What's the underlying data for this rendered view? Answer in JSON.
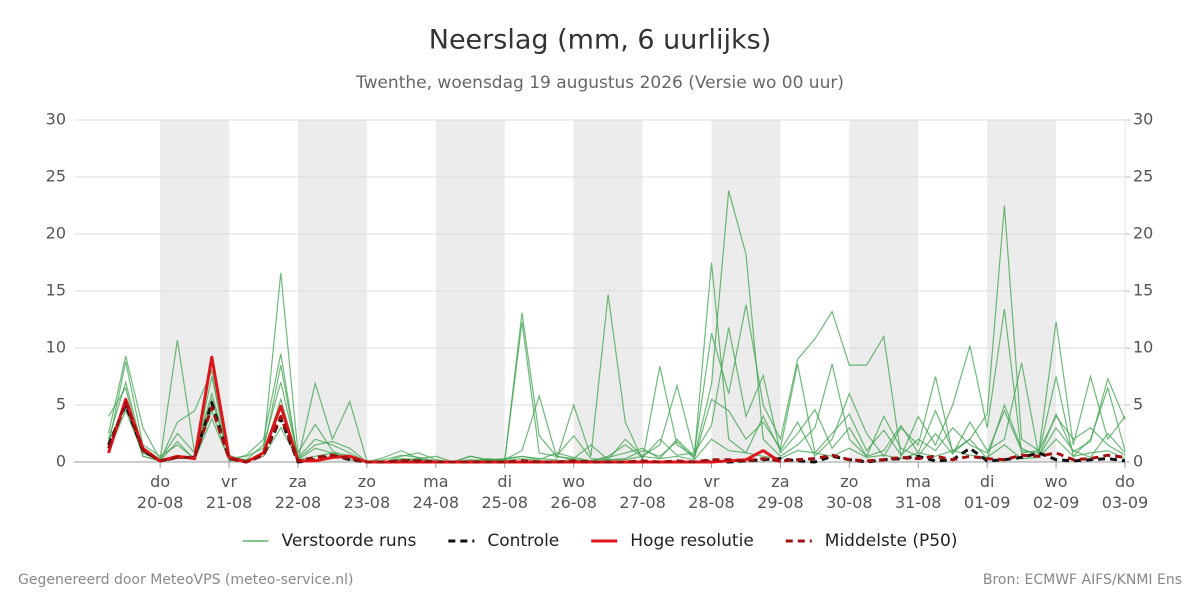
{
  "chart_data": {
    "type": "line",
    "title": "Neerslag (mm, 6 uurlijks)",
    "subtitle": "Twenthe, woensdag 19 augustus 2026 (Versie wo 00 uur)",
    "x": [
      6,
      12,
      18,
      24,
      30,
      36,
      42,
      48,
      54,
      60,
      66,
      72,
      78,
      84,
      90,
      96,
      102,
      108,
      114,
      120,
      126,
      132,
      138,
      144,
      150,
      156,
      162,
      168,
      174,
      180,
      186,
      192,
      198,
      204,
      210,
      216,
      222,
      228,
      234,
      240,
      246,
      252,
      258,
      264,
      270,
      276,
      282,
      288,
      294,
      300,
      306,
      312,
      318,
      324,
      330,
      336,
      342,
      348,
      354,
      360
    ],
    "xlim": [
      -6,
      360
    ],
    "xticks": [
      {
        "value": 24,
        "label": "do\n20-08"
      },
      {
        "value": 48,
        "label": "vr\n21-08"
      },
      {
        "value": 72,
        "label": "za\n22-08"
      },
      {
        "value": 96,
        "label": "zo\n23-08"
      },
      {
        "value": 120,
        "label": "ma\n24-08"
      },
      {
        "value": 144,
        "label": "di\n25-08"
      },
      {
        "value": 168,
        "label": "wo\n26-08"
      },
      {
        "value": 192,
        "label": "do\n27-08"
      },
      {
        "value": 216,
        "label": "vr\n28-08"
      },
      {
        "value": 240,
        "label": "za\n29-08"
      },
      {
        "value": 264,
        "label": "zo\n30-08"
      },
      {
        "value": 288,
        "label": "ma\n31-08"
      },
      {
        "value": 312,
        "label": "di\n01-09"
      },
      {
        "value": 336,
        "label": "wo\n02-09"
      },
      {
        "value": 360,
        "label": "do\n03-09"
      }
    ],
    "ylim": [
      0,
      30
    ],
    "yticks": [
      0,
      5,
      10,
      15,
      20,
      25,
      30
    ],
    "y2lim": [
      0,
      30
    ],
    "y2ticks": [
      0,
      5,
      10,
      15,
      20,
      25,
      30
    ],
    "grid": true,
    "ensemble": {
      "name": "Verstoorde runs",
      "color": "#3fa34d",
      "members": [
        [
          2.5,
          9.3,
          3.0,
          0.2,
          10.7,
          0.8,
          6.0,
          0.6,
          0.1,
          0.9,
          8.5,
          0.3,
          1.5,
          1.8,
          1.2,
          0,
          0,
          0.5,
          0.8,
          0.2,
          0,
          0,
          0.3,
          0.1,
          13.1,
          2.3,
          0.5,
          0.2,
          0.1,
          0.4,
          0.8,
          1.2,
          0.3,
          2.0,
          0.5,
          6.8,
          23.8,
          18.2,
          2.0,
          0.5,
          1.5,
          3.0,
          8.6,
          2.0,
          0.5,
          1.0,
          3.2,
          0.8,
          4.5,
          1.0,
          2.0,
          0.3,
          5.0,
          1.2,
          0.5,
          3.0,
          1.0,
          0.4,
          2.5,
          0.8
        ],
        [
          4.0,
          6.5,
          0.5,
          0.1,
          3.5,
          4.5,
          8.0,
          0.3,
          0.5,
          1.2,
          16.6,
          0.8,
          3.3,
          1.0,
          0.2,
          0,
          0.4,
          1.0,
          0.3,
          0,
          0,
          0.5,
          0.2,
          0.3,
          0.5,
          0.3,
          0.2,
          5.0,
          0.5,
          14.7,
          3.5,
          0.2,
          8.4,
          1.5,
          0.5,
          17.5,
          2.0,
          0.8,
          4.0,
          1.0,
          3.5,
          0.5,
          2.0,
          6.0,
          2.5,
          0.5,
          3.0,
          1.5,
          7.5,
          0.8,
          2.0,
          4.2,
          22.5,
          2.0,
          1.0,
          4.0,
          2.0,
          3.0,
          1.5,
          0.6
        ],
        [
          1.5,
          8.8,
          1.5,
          0.5,
          1.5,
          0.3,
          7.5,
          0.2,
          0.6,
          2.0,
          9.5,
          0.2,
          6.9,
          2.0,
          5.3,
          0.1,
          0,
          0.2,
          0.3,
          0.5,
          0,
          0.2,
          0.1,
          0.2,
          1.0,
          5.8,
          0.5,
          0.3,
          1.5,
          0.2,
          2.0,
          0.5,
          1.5,
          6.7,
          0.8,
          11.3,
          6.0,
          13.8,
          5.0,
          2.0,
          9.0,
          10.8,
          13.2,
          8.5,
          8.5,
          11.0,
          0.5,
          4.0,
          1.5,
          5.0,
          10.2,
          3.0,
          13.4,
          0.8,
          1.0,
          12.3,
          1.5,
          7.5,
          2.0,
          4.0
        ],
        [
          2.0,
          7.0,
          1.0,
          0.2,
          2.5,
          0.8,
          5.5,
          0.4,
          0.2,
          1.5,
          7.0,
          0.4,
          2.0,
          1.5,
          0.8,
          0,
          0.2,
          0.6,
          0.4,
          0.1,
          0,
          0.1,
          0.2,
          0.1,
          12.3,
          0.8,
          0.5,
          2.3,
          0.3,
          0.2,
          0.3,
          1.0,
          0.5,
          1.8,
          0.3,
          5.5,
          4.5,
          2.0,
          3.5,
          1.2,
          8.6,
          0.8,
          2.5,
          4.2,
          1.0,
          2.8,
          0.6,
          2.0,
          1.0,
          3.0,
          1.5,
          0.8,
          4.5,
          1.0,
          0.8,
          7.5,
          0.5,
          2.0,
          6.5,
          1.0
        ],
        [
          1.0,
          4.5,
          0.8,
          0.1,
          1.8,
          0.2,
          3.8,
          0.2,
          0.1,
          0.8,
          5.5,
          0.2,
          1.2,
          0.8,
          0.6,
          0,
          0,
          0.3,
          0.2,
          0,
          0,
          0.5,
          0.2,
          0.2,
          0.5,
          0.2,
          0.8,
          0.4,
          0.1,
          0.5,
          1.5,
          0.4,
          2.0,
          0.6,
          0.8,
          3.2,
          11.8,
          4.0,
          7.6,
          0.8,
          2.5,
          4.6,
          1.2,
          3.0,
          0.5,
          4.0,
          1.2,
          0.5,
          2.5,
          0.7,
          3.5,
          1.0,
          2.0,
          8.7,
          0.5,
          4.2,
          0.9,
          1.8,
          7.3,
          3.7
        ],
        [
          1.8,
          5.0,
          0.5,
          0.1,
          0.6,
          0.3,
          4.5,
          0.1,
          0.2,
          0.5,
          3.0,
          0.2,
          0.5,
          0.8,
          0.2,
          0,
          0,
          0.2,
          0.1,
          0,
          0,
          0,
          0.1,
          0.1,
          0.3,
          0.1,
          0.1,
          0.2,
          0,
          0.2,
          0.2,
          0.5,
          0.3,
          0.5,
          0.2,
          2.0,
          1.0,
          0.8,
          0.5,
          0.3,
          1.0,
          0.8,
          0.5,
          1.2,
          0.4,
          0.6,
          0.3,
          0.8,
          0.5,
          1.0,
          0.6,
          0.4,
          1.5,
          0.3,
          0.4,
          2.0,
          0.5,
          0.8,
          1.0,
          0.3
        ]
      ]
    },
    "series": [
      {
        "name": "Controle",
        "color": "#111111",
        "dash": true,
        "values": [
          1.5,
          5.0,
          1.0,
          0.1,
          0.4,
          0.4,
          5.2,
          0.3,
          0,
          0.6,
          3.8,
          0,
          0.2,
          0.6,
          0.2,
          0,
          0,
          0.1,
          0.1,
          0,
          0,
          0,
          0,
          0,
          0,
          0,
          0,
          0,
          0,
          0,
          0,
          0,
          0,
          0,
          0,
          0.1,
          0,
          0.1,
          0.2,
          0.3,
          0.1,
          0,
          0.5,
          0.2,
          0,
          0.2,
          0.3,
          0.5,
          0.1,
          0.2,
          1.2,
          0.1,
          0.2,
          0.4,
          0.8,
          0.2,
          0.1,
          0.2,
          0.3,
          0.1
        ]
      },
      {
        "name": "Hoge resolutie",
        "color": "#e0151b",
        "dash": false,
        "values": [
          0.8,
          5.5,
          1.2,
          0.1,
          0.5,
          0.3,
          9.2,
          0.4,
          0,
          0.8,
          4.9,
          0.1,
          0.1,
          0.4,
          0.5,
          0,
          0,
          0,
          0,
          0,
          0,
          0,
          0,
          0,
          0,
          0,
          0,
          0,
          0,
          0,
          0,
          0,
          0,
          0,
          0,
          0,
          0.1,
          0.2,
          1.0,
          0,
          null,
          null,
          null,
          null,
          null,
          null,
          null,
          null,
          null,
          null,
          null,
          null,
          null,
          null,
          null,
          null,
          null,
          null,
          null,
          null
        ]
      },
      {
        "name": "Middelste (P50)",
        "color": "#a01010",
        "dash": true,
        "values": [
          1.2,
          5.2,
          1.0,
          0.1,
          0.4,
          0.4,
          4.8,
          0.3,
          0,
          0.6,
          4.0,
          0.1,
          0.4,
          0.6,
          0.3,
          0,
          0,
          0.1,
          0.1,
          0,
          0,
          0,
          0,
          0,
          0.1,
          0,
          0,
          0.1,
          0,
          0,
          0,
          0.1,
          0,
          0.1,
          0,
          0.2,
          0.2,
          0.1,
          0.3,
          0.1,
          0.2,
          0.3,
          0.6,
          0.2,
          0.1,
          0.2,
          0.4,
          0.3,
          0.5,
          0.2,
          0.5,
          0.3,
          0.2,
          0.6,
          0.5,
          0.8,
          0.2,
          0.3,
          0.6,
          0.4
        ]
      }
    ],
    "footer_left": "Gegenereerd door MeteoVPS (meteo-service.nl)",
    "footer_right": "Bron: ECMWF AIFS/KNMI Ens"
  }
}
